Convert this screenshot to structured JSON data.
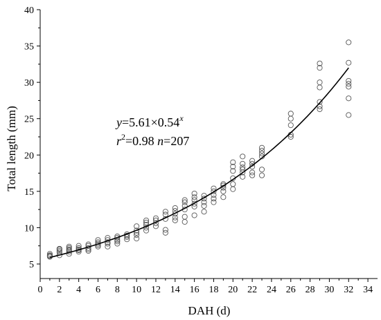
{
  "chart_data": {
    "type": "scatter",
    "xlabel": "DAH (d)",
    "ylabel": "Total length (mm)",
    "xlim": [
      0,
      35
    ],
    "ylim": [
      3,
      40
    ],
    "xticks": [
      0,
      2,
      4,
      6,
      8,
      10,
      12,
      14,
      16,
      18,
      20,
      22,
      24,
      26,
      28,
      30,
      32,
      34
    ],
    "yticks": [
      5,
      10,
      15,
      20,
      25,
      30,
      35,
      40
    ],
    "grid": false,
    "marker": "open-circle",
    "annotation": {
      "line1": {
        "y": "y",
        "eq": "=5.61×0.54",
        "exp": "x"
      },
      "line2": {
        "r": "r",
        "two": "2",
        "rval": "=0.98 ",
        "n": "n",
        "nval": "=207"
      }
    },
    "fit": {
      "label": "exponential fit",
      "x_start": 1,
      "x_end": 32,
      "y_start": 5.9,
      "y_end": 32.0
    },
    "points": [
      [
        1,
        6.0
      ],
      [
        1,
        6.1
      ],
      [
        1,
        6.2
      ],
      [
        1,
        6.4
      ],
      [
        2,
        6.2
      ],
      [
        2,
        6.6
      ],
      [
        2,
        6.8
      ],
      [
        2,
        7.0
      ],
      [
        2,
        7.1
      ],
      [
        3,
        6.4
      ],
      [
        3,
        6.7
      ],
      [
        3,
        6.9
      ],
      [
        3,
        7.0
      ],
      [
        3,
        7.2
      ],
      [
        3,
        7.4
      ],
      [
        4,
        6.7
      ],
      [
        4,
        6.9
      ],
      [
        4,
        7.0
      ],
      [
        4,
        7.2
      ],
      [
        4,
        7.5
      ],
      [
        5,
        6.8
      ],
      [
        5,
        7.0
      ],
      [
        5,
        7.2
      ],
      [
        5,
        7.5
      ],
      [
        5,
        7.7
      ],
      [
        6,
        7.4
      ],
      [
        6,
        7.6
      ],
      [
        6,
        7.8
      ],
      [
        6,
        8.0
      ],
      [
        6,
        8.3
      ],
      [
        7,
        7.4
      ],
      [
        7,
        7.8
      ],
      [
        7,
        8.0
      ],
      [
        7,
        8.3
      ],
      [
        7,
        8.6
      ],
      [
        8,
        7.8
      ],
      [
        8,
        8.1
      ],
      [
        8,
        8.3
      ],
      [
        8,
        8.6
      ],
      [
        8,
        8.8
      ],
      [
        9,
        8.4
      ],
      [
        9,
        8.7
      ],
      [
        9,
        8.9
      ],
      [
        9,
        9.1
      ],
      [
        10,
        8.5
      ],
      [
        10,
        9.0
      ],
      [
        10,
        9.3
      ],
      [
        10,
        9.6
      ],
      [
        10,
        10.2
      ],
      [
        11,
        9.6
      ],
      [
        11,
        10.0
      ],
      [
        11,
        10.4
      ],
      [
        11,
        10.7
      ],
      [
        11,
        11.0
      ],
      [
        12,
        10.2
      ],
      [
        12,
        10.6
      ],
      [
        12,
        11.0
      ],
      [
        12,
        11.3
      ],
      [
        13,
        9.3
      ],
      [
        13,
        9.7
      ],
      [
        13,
        11.2
      ],
      [
        13,
        11.8
      ],
      [
        13,
        12.2
      ],
      [
        14,
        11.0
      ],
      [
        14,
        11.4
      ],
      [
        14,
        11.9
      ],
      [
        14,
        12.3
      ],
      [
        14,
        12.7
      ],
      [
        15,
        10.8
      ],
      [
        15,
        11.5
      ],
      [
        15,
        12.5
      ],
      [
        15,
        13.0
      ],
      [
        15,
        13.5
      ],
      [
        15,
        13.8
      ],
      [
        16,
        11.7
      ],
      [
        16,
        12.9
      ],
      [
        16,
        13.3
      ],
      [
        16,
        13.8
      ],
      [
        16,
        14.2
      ],
      [
        16,
        14.7
      ],
      [
        17,
        12.2
      ],
      [
        17,
        13.0
      ],
      [
        17,
        13.5
      ],
      [
        17,
        14.0
      ],
      [
        17,
        14.4
      ],
      [
        18,
        13.5
      ],
      [
        18,
        14.0
      ],
      [
        18,
        14.5
      ],
      [
        18,
        15.0
      ],
      [
        18,
        15.4
      ],
      [
        19,
        14.2
      ],
      [
        19,
        15.0
      ],
      [
        19,
        15.5
      ],
      [
        19,
        15.8
      ],
      [
        19,
        16.0
      ],
      [
        20,
        15.3
      ],
      [
        20,
        16.0
      ],
      [
        20,
        16.8
      ],
      [
        20,
        17.8
      ],
      [
        20,
        18.4
      ],
      [
        20,
        19.0
      ],
      [
        21,
        17.0
      ],
      [
        21,
        17.6
      ],
      [
        21,
        18.0
      ],
      [
        21,
        18.3
      ],
      [
        21,
        18.8
      ],
      [
        21,
        19.8
      ],
      [
        22,
        17.2
      ],
      [
        22,
        17.6
      ],
      [
        22,
        18.4
      ],
      [
        22,
        18.8
      ],
      [
        22,
        19.2
      ],
      [
        23,
        17.2
      ],
      [
        23,
        18.0
      ],
      [
        23,
        19.8
      ],
      [
        23,
        20.2
      ],
      [
        23,
        20.6
      ],
      [
        23,
        21.0
      ],
      [
        26,
        22.5
      ],
      [
        26,
        22.8
      ],
      [
        26,
        24.1
      ],
      [
        26,
        25.0
      ],
      [
        26,
        25.7
      ],
      [
        29,
        26.3
      ],
      [
        29,
        26.7
      ],
      [
        29,
        27.3
      ],
      [
        29,
        29.3
      ],
      [
        29,
        30.0
      ],
      [
        29,
        32.0
      ],
      [
        29,
        32.6
      ],
      [
        32,
        25.5
      ],
      [
        32,
        27.8
      ],
      [
        32,
        29.4
      ],
      [
        32,
        29.8
      ],
      [
        32,
        30.2
      ],
      [
        32,
        32.7
      ],
      [
        32,
        35.5
      ]
    ]
  }
}
